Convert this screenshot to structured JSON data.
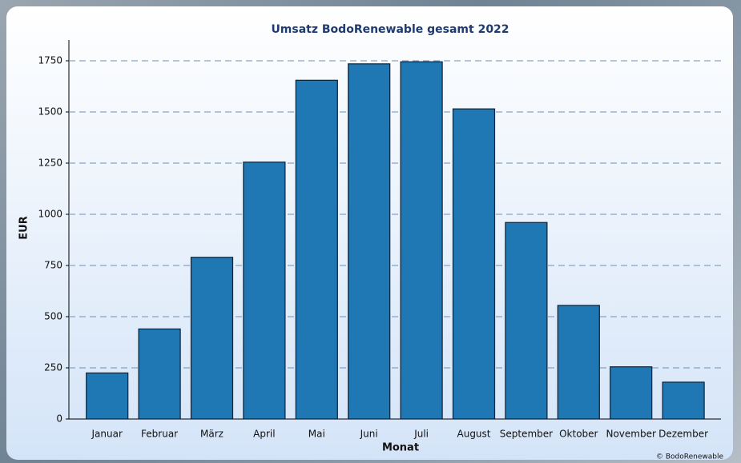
{
  "chart_data": {
    "type": "bar",
    "title": "Umsatz BodoRenewable gesamt 2022",
    "xlabel": "Monat",
    "ylabel": "EUR",
    "categories": [
      "Januar",
      "Februar",
      "März",
      "April",
      "Mai",
      "Juni",
      "Juli",
      "August",
      "September",
      "Oktober",
      "November",
      "Dezember"
    ],
    "values": [
      225,
      440,
      790,
      1255,
      1655,
      1735,
      1745,
      1515,
      960,
      555,
      255,
      180
    ],
    "color": "#1f77b4",
    "ylim": [
      0,
      1850
    ],
    "yticks": [
      0,
      250,
      500,
      750,
      1000,
      1250,
      1500,
      1750
    ],
    "grid": true,
    "credit": "© BodoRenewable"
  }
}
